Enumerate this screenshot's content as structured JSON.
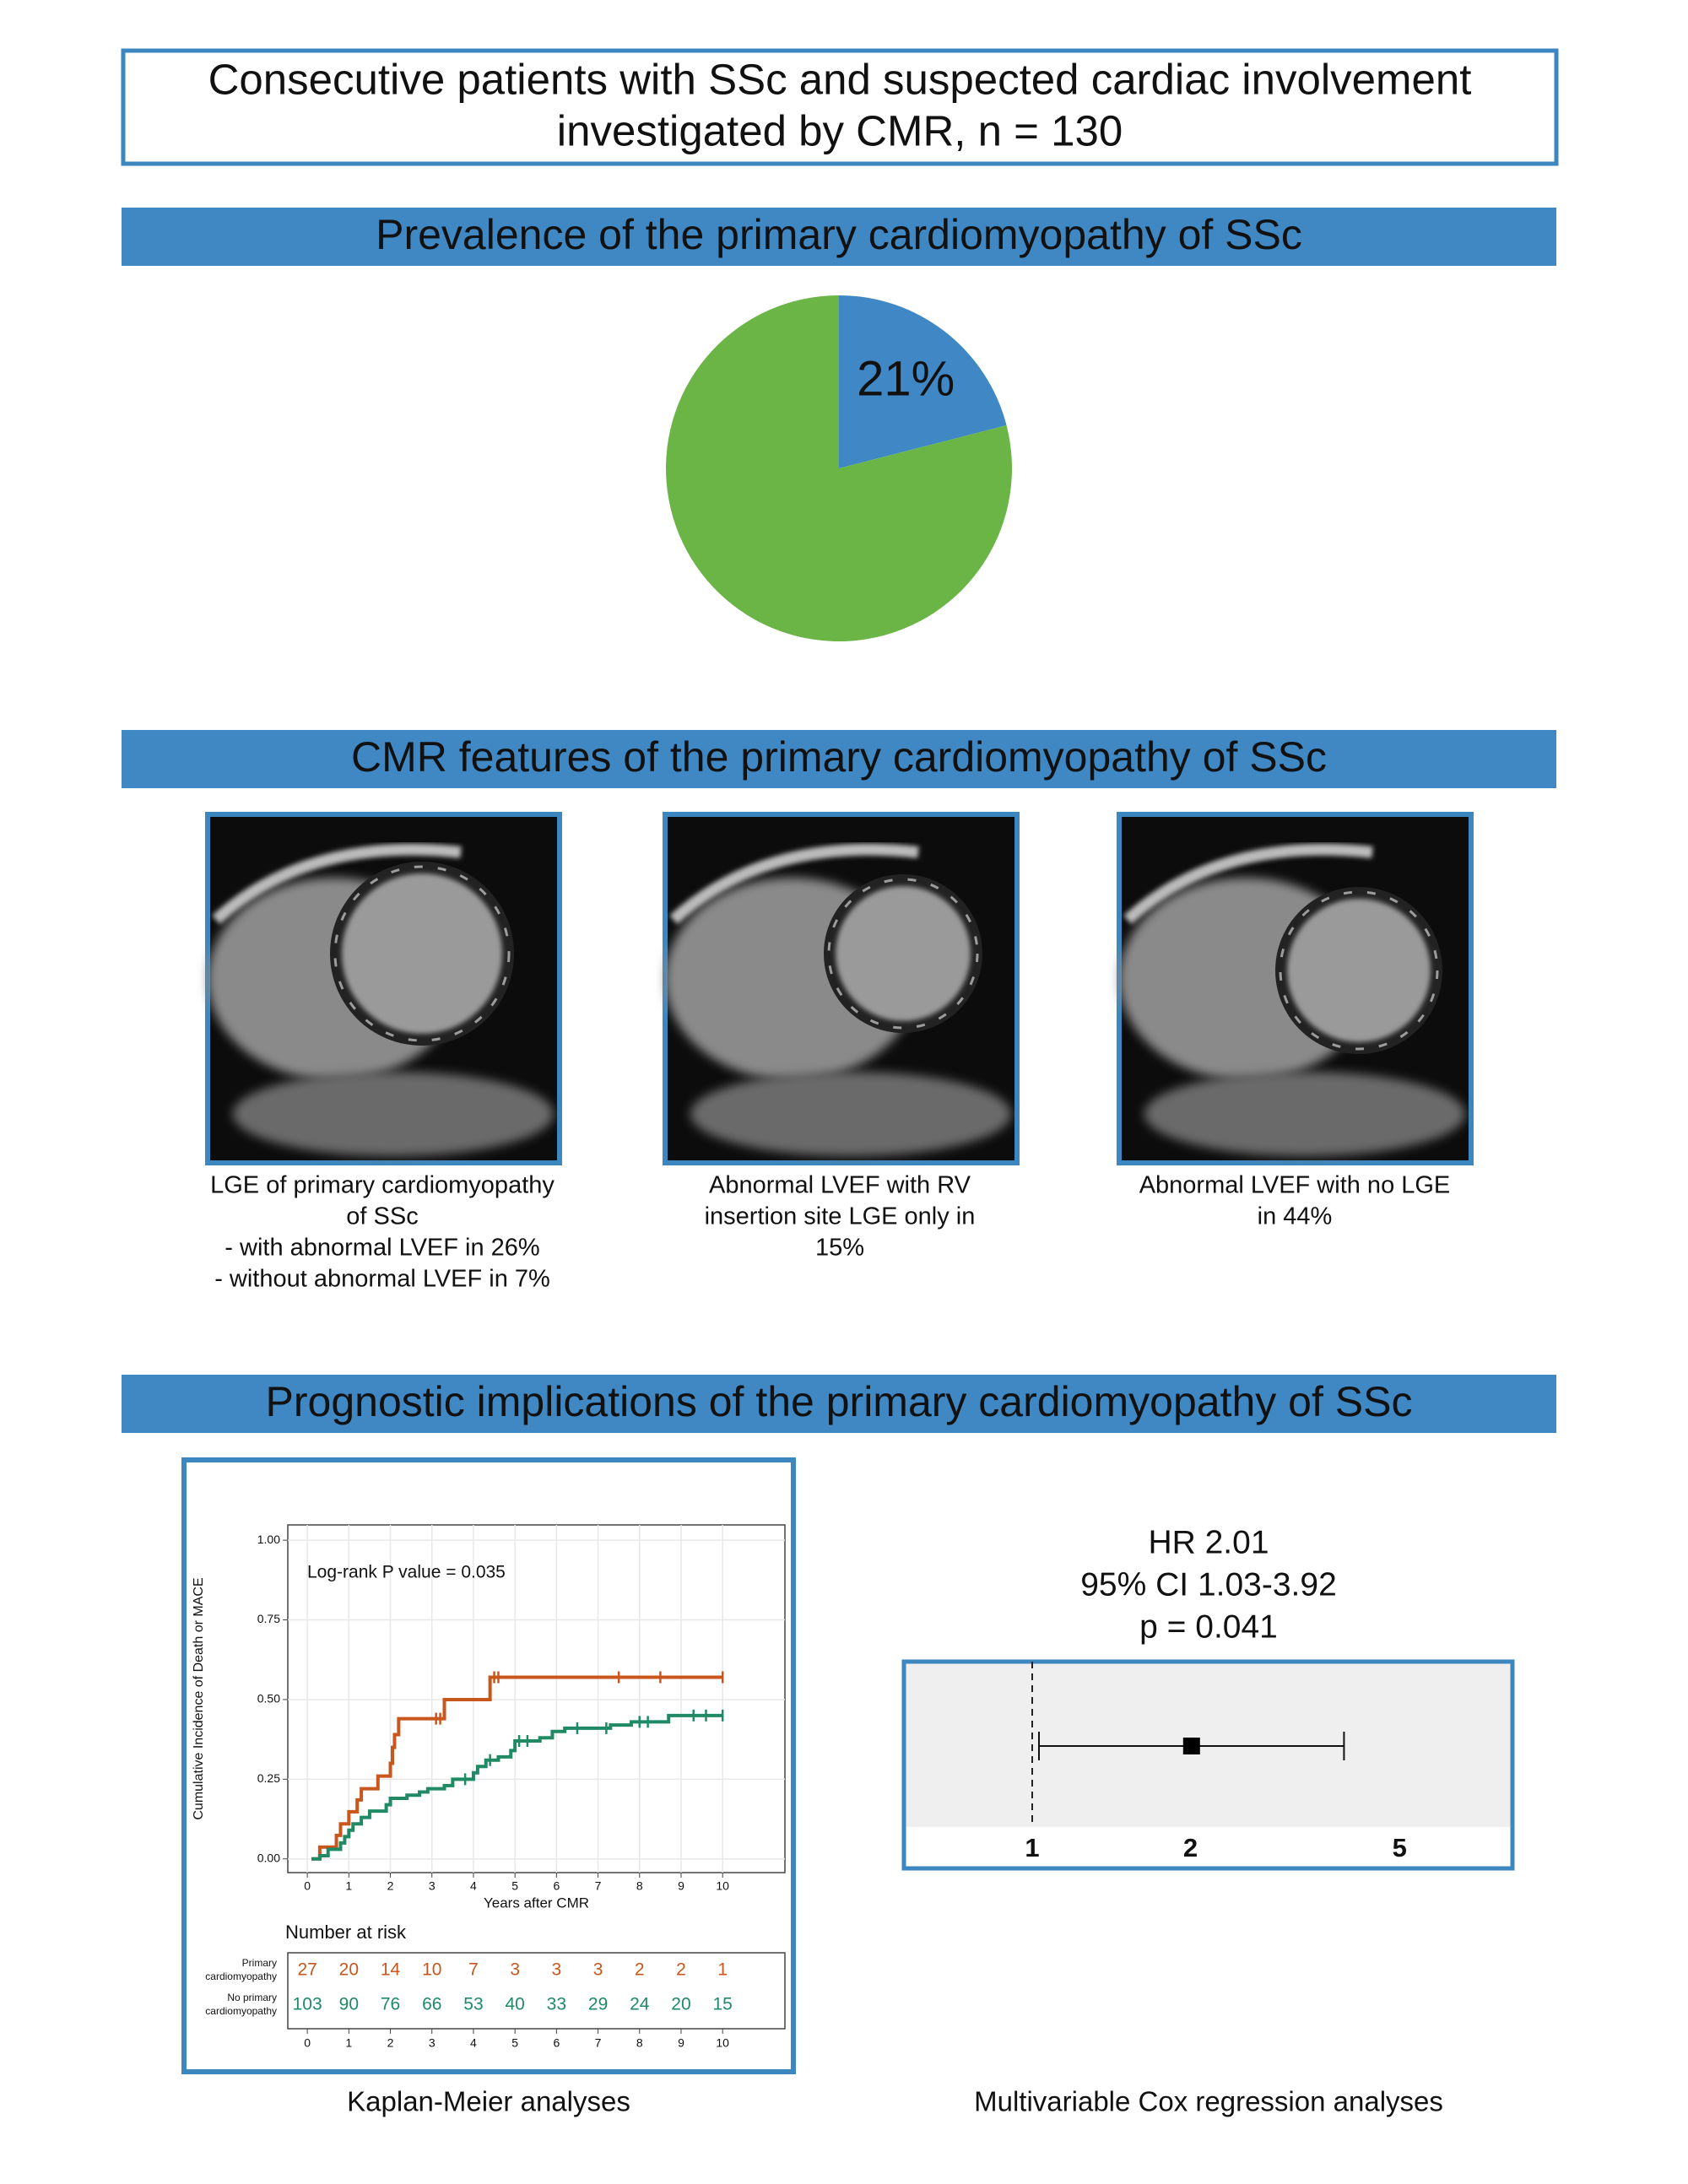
{
  "header": {
    "title_lines": [
      "Consecutive patients with SSc and suspected cardiac involvement",
      "investigated by CMR, n = 130"
    ]
  },
  "sections": [
    {
      "title": "Prevalence of the primary cardiomyopathy of SSc"
    },
    {
      "title": "CMR features of the primary cardiomyopathy of SSc"
    },
    {
      "title": "Prognostic implications of the primary cardiomyopathy of SSc"
    }
  ],
  "images": [
    {
      "caption_lines": [
        "LGE of primary cardiomyopathy",
        "of SSc",
        "- with abnormal LVEF in 26%",
        "- without abnormal LVEF in 7%"
      ]
    },
    {
      "caption_lines": [
        "Abnormal LVEF with RV",
        "insertion site LGE only in",
        "15%"
      ]
    },
    {
      "caption_lines": [
        "Abnormal LVEF with no LGE",
        "in 44%"
      ]
    }
  ],
  "captions": [
    "Kaplan-Meier analyses",
    "Multivariable Cox regression analyses"
  ],
  "chart_data": [
    {
      "type": "pie",
      "values": [
        21,
        79
      ],
      "value_labels": [
        "21%",
        null
      ],
      "colors": [
        "#3f88c5",
        "#6ab545"
      ]
    },
    {
      "type": "step",
      "ylabel": "Cumulative Incidence of Death or MACE",
      "xlabel": "Years after CMR",
      "annotation": "Log-rank P value = 0.035",
      "xlim": [
        -0.47,
        11.5
      ],
      "ylim": [
        -0.043,
        1.048
      ],
      "xticks": [
        0,
        1,
        2,
        3,
        4,
        5,
        6,
        7,
        8,
        9,
        10
      ],
      "yticks": [
        {
          "value": 0,
          "label": "0.00"
        },
        {
          "value": 0.25,
          "label": "0.25"
        },
        {
          "value": 0.5,
          "label": "0.50"
        },
        {
          "value": 0.75,
          "label": "0.75"
        },
        {
          "value": 1,
          "label": "1.00"
        }
      ],
      "grid": true,
      "series": [
        {
          "color": "#c8561d",
          "x": [
            0.1,
            0.3,
            0.7,
            0.8,
            1.0,
            1.2,
            1.3,
            1.7,
            2.0,
            2.05,
            2.1,
            2.2,
            3.3,
            4.4,
            10
          ],
          "y": [
            0,
            0.037,
            0.074,
            0.11,
            0.148,
            0.185,
            0.22,
            0.26,
            0.3,
            0.35,
            0.39,
            0.44,
            0.5,
            0.57,
            0.57
          ],
          "censor_x": [
            3.1,
            3.2,
            4.5,
            4.6,
            7.5,
            8.5,
            10
          ]
        },
        {
          "color": "#1f8a63",
          "x": [
            0.1,
            0.3,
            0.5,
            0.8,
            0.9,
            1.0,
            1.1,
            1.3,
            1.5,
            1.9,
            2.0,
            2.4,
            2.7,
            2.9,
            3.3,
            3.5,
            4.0,
            4.1,
            4.3,
            4.6,
            4.9,
            5.0,
            5.6,
            5.9,
            6.2,
            7.3,
            7.8,
            8.7,
            10
          ],
          "y": [
            0,
            0.01,
            0.03,
            0.05,
            0.07,
            0.09,
            0.11,
            0.13,
            0.15,
            0.17,
            0.19,
            0.2,
            0.21,
            0.22,
            0.23,
            0.25,
            0.27,
            0.29,
            0.31,
            0.32,
            0.34,
            0.37,
            0.38,
            0.4,
            0.41,
            0.42,
            0.43,
            0.45,
            0.45
          ],
          "censor_x": [
            3.8,
            4.4,
            5.1,
            5.3,
            6.5,
            7.2,
            8.0,
            8.2,
            9.3,
            9.6,
            10
          ]
        }
      ],
      "risk_table": {
        "title": "Number at risk",
        "times": [
          0,
          1,
          2,
          3,
          4,
          5,
          6,
          7,
          8,
          9,
          10
        ],
        "rows": [
          {
            "label_lines": [
              "Primary",
              "cardiomyopathy"
            ],
            "color": "#c8561d",
            "values": [
              27,
              20,
              14,
              10,
              7,
              3,
              3,
              3,
              2,
              2,
              1
            ]
          },
          {
            "label_lines": [
              "No primary",
              "cardiomyopathy"
            ],
            "color": "#1f8a63",
            "values": [
              103,
              90,
              76,
              66,
              53,
              40,
              33,
              29,
              24,
              20,
              15
            ]
          }
        ]
      }
    },
    {
      "type": "forest",
      "annotation_lines": [
        "HR 2.01",
        "95% CI 1.03-3.92",
        "p = 0.041"
      ],
      "log_x": true,
      "xlim": [
        0.57,
        8.2
      ],
      "xticks": [
        1,
        2,
        5
      ],
      "reference": 1,
      "value": 2.01,
      "ci": [
        1.03,
        3.92
      ]
    }
  ]
}
